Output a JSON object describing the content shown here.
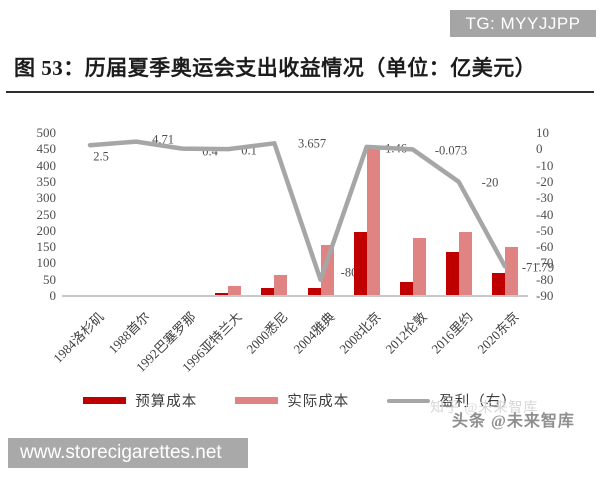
{
  "overlay": {
    "tg_badge": "TG: MYYJJPP",
    "site_badge": "www.storecigarettes.net"
  },
  "header": {
    "title": "图 53：历届夏季奥运会支出收益情况（单位：亿美元）"
  },
  "watermark": {
    "back": "知乎 @未来智库",
    "front": "头条 @未来智库"
  },
  "chart_data": {
    "type": "bar+line combo",
    "categories": [
      "1984洛杉矶",
      "1988首尔",
      "1992巴塞罗那",
      "1996亚特兰大",
      "2000悉尼",
      "2004雅典",
      "2008北京",
      "2012伦敦",
      "2016里约",
      "2020东京"
    ],
    "series": [
      {
        "name": "预算成本",
        "type": "bar",
        "axis": "left",
        "color": "#c00000",
        "values": [
          0,
          0,
          0,
          8,
          25,
          25,
          196,
          43,
          135,
          70
        ]
      },
      {
        "name": "实际成本",
        "type": "bar",
        "axis": "left",
        "color": "#e08383",
        "values": [
          0,
          0,
          0,
          30,
          64,
          156,
          450,
          178,
          196,
          150
        ]
      },
      {
        "name": "盈利（右）",
        "type": "line",
        "axis": "right",
        "color": "#a6a6a6",
        "values": [
          2.5,
          4.71,
          0.4,
          0.1,
          3.657,
          -80,
          1.46,
          -0.073,
          -20,
          -71.79
        ],
        "labels": [
          "2.5",
          "4.71",
          "0.4",
          "0.1",
          "3.657",
          "-80",
          "1.46",
          "-0.073",
          "-20",
          "-71.79"
        ]
      }
    ],
    "left_axis": {
      "min": 0,
      "max": 500,
      "step": 50,
      "ticks": [
        "500",
        "450",
        "400",
        "350",
        "300",
        "250",
        "200",
        "150",
        "100",
        "50",
        "0"
      ]
    },
    "right_axis": {
      "min": -90,
      "max": 10,
      "step": 10,
      "ticks": [
        "10",
        "0",
        "-10",
        "-20",
        "-30",
        "-40",
        "-50",
        "-60",
        "-70",
        "-80",
        "-90"
      ]
    },
    "grid": "off",
    "legend_position": "bottom",
    "colors": {
      "budget": "#c00000",
      "actual": "#e08383",
      "profit_line": "#a6a6a6"
    }
  }
}
